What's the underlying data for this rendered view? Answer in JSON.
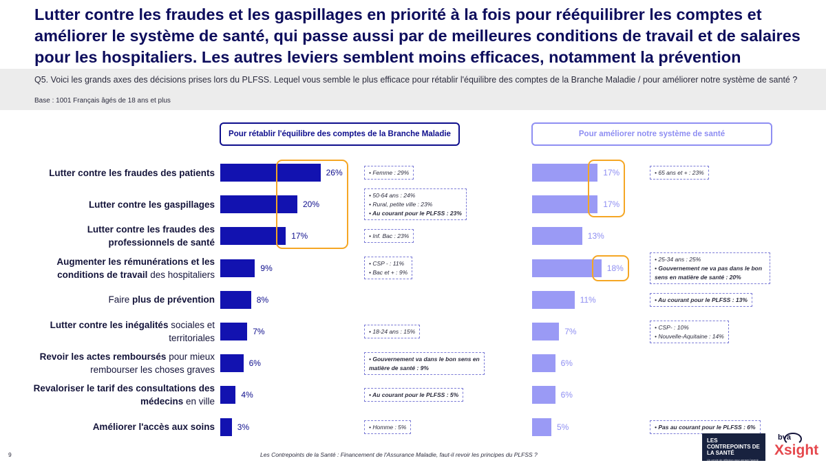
{
  "title": "Lutter contre les fraudes et les gaspillages en priorité à la fois pour rééquilibrer les comptes et améliorer  le système de santé, qui passe aussi par de meilleures conditions de travail et de salaires pour les hospitaliers. Les autres leviers semblent moins efficaces, notamment la prévention",
  "question": "Q5. Voici les grands axes des décisions prises lors du PLFSS. Lequel vous semble le plus efficace pour rétablir l'équilibre des comptes de la Branche Maladie / pour améliorer notre système de santé ?",
  "base": "Base : 1001 Français âgés de 18 ans et plus",
  "colors": {
    "dark_bar": "#1212b0",
    "light_bar": "#9a9af5",
    "highlight": "#f5a623",
    "title": "#0d0d5c"
  },
  "chart_data": {
    "type": "bar",
    "orientation": "horizontal",
    "title": "",
    "categories": [
      {
        "bold": "Lutter contre les fraudes des patients",
        "rest": ""
      },
      {
        "bold": "Lutter contre les gaspillages",
        "rest": ""
      },
      {
        "bold": "Lutter contre les fraudes des professionnels de santé",
        "rest": ""
      },
      {
        "bold": "Augmenter les rémunérations et les conditions de travail",
        "rest": " des hospitaliers"
      },
      {
        "bold": "",
        "rest": "Faire ",
        "bold2": "plus de prévention"
      },
      {
        "bold": "Lutter contre les inégalités",
        "rest": " sociales et territoriales"
      },
      {
        "bold": "Revoir les actes remboursés",
        "rest": " pour mieux rembourser les choses graves"
      },
      {
        "bold": "Revaloriser le tarif des consultations des médecins",
        "rest": " en ville"
      },
      {
        "bold": "Améliorer l'accès aux soins",
        "rest": ""
      }
    ],
    "series": [
      {
        "name": "Pour rétablir l'équilibre des comptes de la Branche Maladie",
        "values": [
          26,
          20,
          17,
          9,
          8,
          7,
          6,
          4,
          3
        ],
        "labels": [
          "26%",
          "20%",
          "17%",
          "9%",
          "8%",
          "7%",
          "6%",
          "4%",
          "3%"
        ],
        "highlighted": [
          0,
          1,
          2
        ],
        "notes": [
          [
            {
              "t": "Femme : 29%",
              "b": false
            }
          ],
          [
            {
              "t": "50-64 ans : 24%",
              "b": false
            },
            {
              "t": "Rural, petite ville : 23%",
              "b": false
            },
            {
              "t": "Au courant pour le PLFSS : 23%",
              "b": true
            }
          ],
          [
            {
              "t": "Inf. Bac : 23%",
              "b": false
            }
          ],
          [
            {
              "t": "CSP - : 11%",
              "b": false
            },
            {
              "t": "Bac et + : 9%",
              "b": false
            }
          ],
          [],
          [
            {
              "t": "18-24 ans : 15%",
              "b": false
            }
          ],
          [
            {
              "t": "Gouvernement va dans le bon sens en matière de santé : 9%",
              "b": true
            }
          ],
          [
            {
              "t": "Au courant pour le PLFSS : 5%",
              "b": true
            }
          ],
          [
            {
              "t": "Homme : 5%",
              "b": false
            }
          ]
        ]
      },
      {
        "name": "Pour améliorer notre système de santé",
        "values": [
          17,
          17,
          13,
          18,
          11,
          7,
          6,
          6,
          5
        ],
        "labels": [
          "17%",
          "17%",
          "13%",
          "18%",
          "11%",
          "7%",
          "6%",
          "6%",
          "5%"
        ],
        "highlighted": [
          0,
          1,
          3
        ],
        "notes": [
          [
            {
              "t": "65 ans et + : 23%",
              "b": false
            }
          ],
          [],
          [],
          [
            {
              "t": "25-34 ans : 25%",
              "b": false
            },
            {
              "t": "Gouvernement ne va pas dans le bon sens en matière de santé : 20%",
              "b": true
            }
          ],
          [
            {
              "t": "Au courant pour le PLFSS : 13%",
              "b": true
            }
          ],
          [
            {
              "t": "CSP- : 10%",
              "b": false
            },
            {
              "t": "Nouvelle-Aquitaine : 14%",
              "b": false
            }
          ],
          [],
          [],
          [
            {
              "t": "Pas au courant pour le PLFSS : 6%",
              "b": true
            }
          ]
        ]
      }
    ],
    "xlim": [
      0,
      26
    ]
  },
  "footer": {
    "page": "9",
    "text": "Les Contrepoints de la Santé : Financement de l'Assurance Maladie, faut-il revoir les principes du PLFSS ?",
    "logo_title": "LES CONTREPOINTS DE LA SANTÉ",
    "logo_sub": "Un cercle de réflexion pour penser l'avenir du système de santé",
    "brand_top": "bva",
    "brand_main": "Xsight"
  }
}
